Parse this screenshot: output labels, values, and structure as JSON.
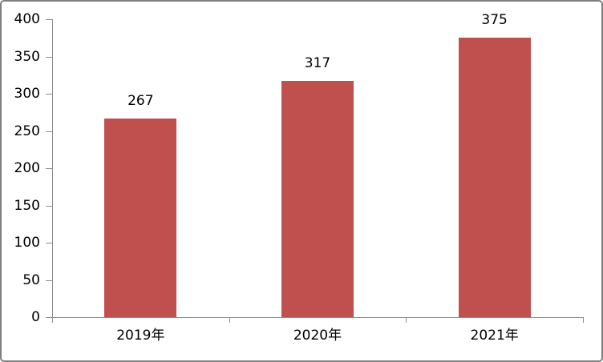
{
  "window": {
    "background": "#ffffff",
    "border_color": "#7f7f7f"
  },
  "chart_data": {
    "type": "bar",
    "title": "",
    "xlabel": "",
    "ylabel": "",
    "categories": [
      "2019年",
      "2020年",
      "2021年"
    ],
    "series": [
      {
        "name": "",
        "values": [
          267,
          317,
          375
        ]
      }
    ],
    "values": [
      267,
      317,
      375
    ],
    "data_labels": [
      "267",
      "317",
      "375"
    ],
    "ylim": [
      0,
      400
    ],
    "ytick_step": 50,
    "yticks": [
      "0",
      "50",
      "100",
      "150",
      "200",
      "250",
      "300",
      "350",
      "400"
    ],
    "grid": false,
    "legend_position": "none",
    "bar_color": "#c0504d",
    "axis_color": "#8c8c8c",
    "label_color": "#000000"
  }
}
